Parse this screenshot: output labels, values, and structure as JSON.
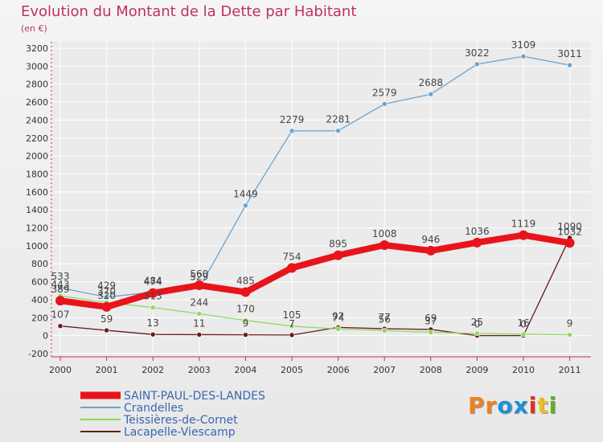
{
  "header": {
    "title": "Evolution du Montant de la Dette par Habitant",
    "unit": "(en €)"
  },
  "logo": {
    "text": "Proxiti",
    "letters": [
      "P",
      "r",
      "o",
      "x",
      "i",
      "t",
      "i"
    ],
    "colors": [
      "#f08020",
      "#f08020",
      "#1e90d8",
      "#1e90d8",
      "#e03020",
      "#e8c020",
      "#60b020"
    ]
  },
  "colors": {
    "title": "#c03068",
    "axis": "#c03068",
    "grid": "#ffffff"
  },
  "chart_data": {
    "type": "line",
    "x": [
      "2000",
      "2001",
      "2002",
      "2003",
      "2004",
      "2005",
      "2006",
      "2007",
      "2008",
      "2009",
      "2010",
      "2011"
    ],
    "ylim": [
      -200,
      3200
    ],
    "yticks": [
      -200,
      0,
      200,
      400,
      600,
      800,
      1000,
      1200,
      1400,
      1600,
      1800,
      2000,
      2200,
      2400,
      2600,
      2800,
      3000,
      3200
    ],
    "legend_position": "bottom-left",
    "series": [
      {
        "name": "SAINT-PAUL-DES-LANDES",
        "color": "#e8141c",
        "width": 8,
        "marker": 6,
        "values": [
          389,
          320,
          474,
          560,
          485,
          754,
          895,
          1008,
          946,
          1036,
          1119,
          1032
        ]
      },
      {
        "name": "Crandelles",
        "color": "#6aa3d0",
        "width": 1.3,
        "marker": 3,
        "values": [
          533,
          429,
          484,
          529,
          1449,
          2279,
          2281,
          2579,
          2688,
          3022,
          3109,
          3011
        ]
      },
      {
        "name": "Teissières-de-Cornet",
        "color": "#8fd860",
        "width": 1.3,
        "marker": 3,
        "values": [
          443,
          370,
          313,
          244,
          170,
          105,
          74,
          56,
          37,
          25,
          16,
          9
        ]
      },
      {
        "name": "Lacapelle-Viescamp",
        "color": "#6b1818",
        "width": 1.3,
        "marker": 3,
        "values": [
          107,
          59,
          13,
          11,
          9,
          7,
          92,
          77,
          69,
          0,
          0,
          1090
        ]
      }
    ]
  }
}
